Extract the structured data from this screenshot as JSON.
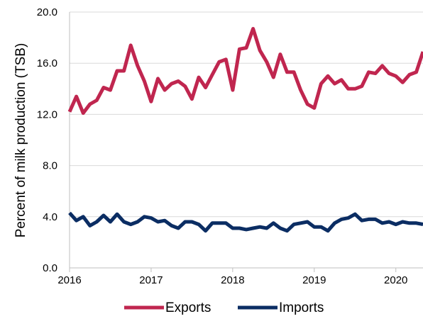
{
  "chart_data": {
    "type": "line",
    "title": "",
    "xlabel": "",
    "ylabel": "Percent of milk production (TSB)",
    "ylim": [
      0,
      20
    ],
    "xlim": [
      2016,
      2020.33
    ],
    "yticks": [
      "0.0",
      "4.0",
      "8.0",
      "12.0",
      "16.0",
      "20.0"
    ],
    "ytick_values": [
      0,
      4,
      8,
      12,
      16,
      20
    ],
    "xticks": [
      "2016",
      "2017",
      "2018",
      "2019",
      "2020"
    ],
    "xtick_values": [
      2016,
      2017,
      2018,
      2019,
      2020
    ],
    "grid": "horizontal",
    "legend_position": "bottom",
    "x": [
      2016.0,
      2016.0833,
      2016.1667,
      2016.25,
      2016.3333,
      2016.4167,
      2016.5,
      2016.5833,
      2016.6667,
      2016.75,
      2016.8333,
      2016.9167,
      2017.0,
      2017.0833,
      2017.1667,
      2017.25,
      2017.3333,
      2017.4167,
      2017.5,
      2017.5833,
      2017.6667,
      2017.75,
      2017.8333,
      2017.9167,
      2018.0,
      2018.0833,
      2018.1667,
      2018.25,
      2018.3333,
      2018.4167,
      2018.5,
      2018.5833,
      2018.6667,
      2018.75,
      2018.8333,
      2018.9167,
      2019.0,
      2019.0833,
      2019.1667,
      2019.25,
      2019.3333,
      2019.4167,
      2019.5,
      2019.5833,
      2019.6667,
      2019.75,
      2019.8333,
      2019.9167,
      2020.0,
      2020.0833,
      2020.1667,
      2020.25,
      2020.3333
    ],
    "series": [
      {
        "name": "Exports",
        "color": "#c0264f",
        "values": [
          12.2,
          13.4,
          12.1,
          12.8,
          13.1,
          14.1,
          13.9,
          15.4,
          15.4,
          17.4,
          15.8,
          14.6,
          13.0,
          14.8,
          13.9,
          14.4,
          14.6,
          14.2,
          13.2,
          14.9,
          14.1,
          15.1,
          16.1,
          16.3,
          13.9,
          17.1,
          17.2,
          18.7,
          17.0,
          16.1,
          14.9,
          16.7,
          15.3,
          15.3,
          13.9,
          12.8,
          12.5,
          14.4,
          15.0,
          14.4,
          14.7,
          14.0,
          14.0,
          14.2,
          15.3,
          15.2,
          15.8,
          15.2,
          15.0,
          14.5,
          15.1,
          15.3,
          16.9
        ]
      },
      {
        "name": "Imports",
        "color": "#0b2d63",
        "values": [
          4.3,
          3.7,
          4.0,
          3.3,
          3.6,
          4.1,
          3.6,
          4.2,
          3.6,
          3.4,
          3.6,
          4.0,
          3.9,
          3.6,
          3.7,
          3.3,
          3.1,
          3.6,
          3.6,
          3.4,
          2.9,
          3.5,
          3.5,
          3.5,
          3.1,
          3.1,
          3.0,
          3.1,
          3.2,
          3.1,
          3.5,
          3.1,
          2.9,
          3.4,
          3.5,
          3.6,
          3.2,
          3.2,
          2.9,
          3.5,
          3.8,
          3.9,
          4.2,
          3.7,
          3.8,
          3.8,
          3.5,
          3.6,
          3.4,
          3.6,
          3.5,
          3.5,
          3.4
        ]
      }
    ]
  }
}
